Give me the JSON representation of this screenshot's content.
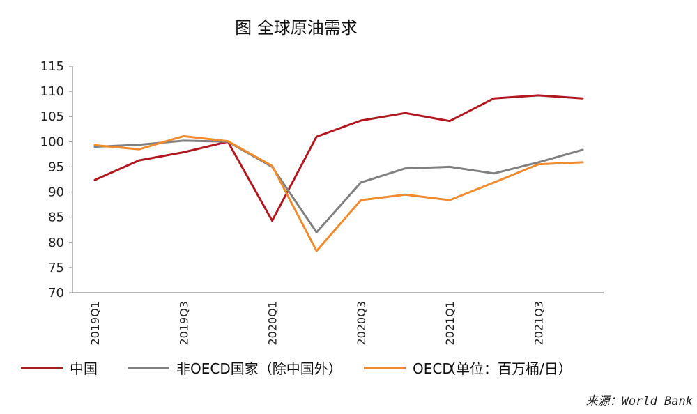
{
  "chart_data": {
    "type": "line",
    "title": "图  全球原油需求",
    "categories": [
      "2019Q1",
      "2019Q2",
      "2019Q3",
      "2019Q4",
      "2020Q1",
      "2020Q2",
      "2020Q3",
      "2020Q4",
      "2021Q1",
      "2021Q2",
      "2021Q3",
      "2021Q4"
    ],
    "x_tick_labels": [
      "2019Q1",
      "2019Q3",
      "2020Q1",
      "2020Q3",
      "2021Q1",
      "2021Q3"
    ],
    "ylim": [
      70,
      115
    ],
    "y_ticks": [
      70,
      75,
      80,
      85,
      90,
      95,
      100,
      105,
      110,
      115
    ],
    "grid": false,
    "legend_position": "bottom",
    "unit_note": "（单位：百万桶/日）",
    "source": "来源：World Bank",
    "series": [
      {
        "name": "中国",
        "color": "#B0171F",
        "values": [
          92.4,
          96.3,
          97.9,
          100.0,
          84.3,
          101.0,
          104.2,
          105.7,
          104.1,
          108.6,
          109.2,
          108.6
        ]
      },
      {
        "name": "非OECD国家（除中国外）",
        "color": "#808080",
        "values": [
          99.0,
          99.4,
          100.2,
          100.0,
          95.0,
          82.0,
          91.9,
          94.7,
          95.0,
          93.7,
          95.9,
          98.4
        ]
      },
      {
        "name": "OECD",
        "color": "#F08C30",
        "values": [
          99.3,
          98.5,
          101.1,
          100.1,
          95.2,
          78.3,
          88.4,
          89.5,
          88.4,
          91.9,
          95.5,
          95.9
        ]
      }
    ]
  }
}
